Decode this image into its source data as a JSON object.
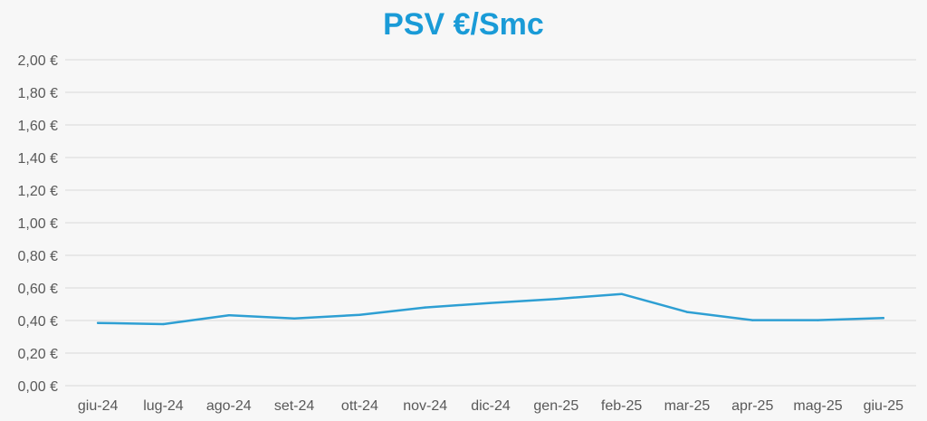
{
  "chart_data": {
    "type": "line",
    "title": "PSV €/Smc",
    "xlabel": "",
    "ylabel": "",
    "categories": [
      "giu-24",
      "lug-24",
      "ago-24",
      "set-24",
      "ott-24",
      "nov-24",
      "dic-24",
      "gen-25",
      "feb-25",
      "mar-25",
      "apr-25",
      "mag-25",
      "giu-25"
    ],
    "series": [
      {
        "values": [
          0.385,
          0.378,
          0.432,
          0.412,
          0.435,
          0.48,
          0.508,
          0.532,
          0.563,
          0.452,
          0.402,
          0.402,
          0.415
        ]
      }
    ],
    "ylim": [
      0,
      2.0
    ],
    "yticks": [
      0,
      0.2,
      0.4,
      0.6,
      0.8,
      1.0,
      1.2,
      1.4,
      1.6,
      1.8,
      2.0
    ],
    "ytick_labels": [
      "0,00 €",
      "0,20 €",
      "0,40 €",
      "0,60 €",
      "0,80 €",
      "1,00 €",
      "1,20 €",
      "1,40 €",
      "1,60 €",
      "1,80 €",
      "2,00 €"
    ],
    "grid": true,
    "legend": "none",
    "colors": {
      "title": "#1a9bd7",
      "line": "#2e9fd3",
      "grid": "#d9d9d9",
      "background": "#f7f7f7"
    }
  }
}
